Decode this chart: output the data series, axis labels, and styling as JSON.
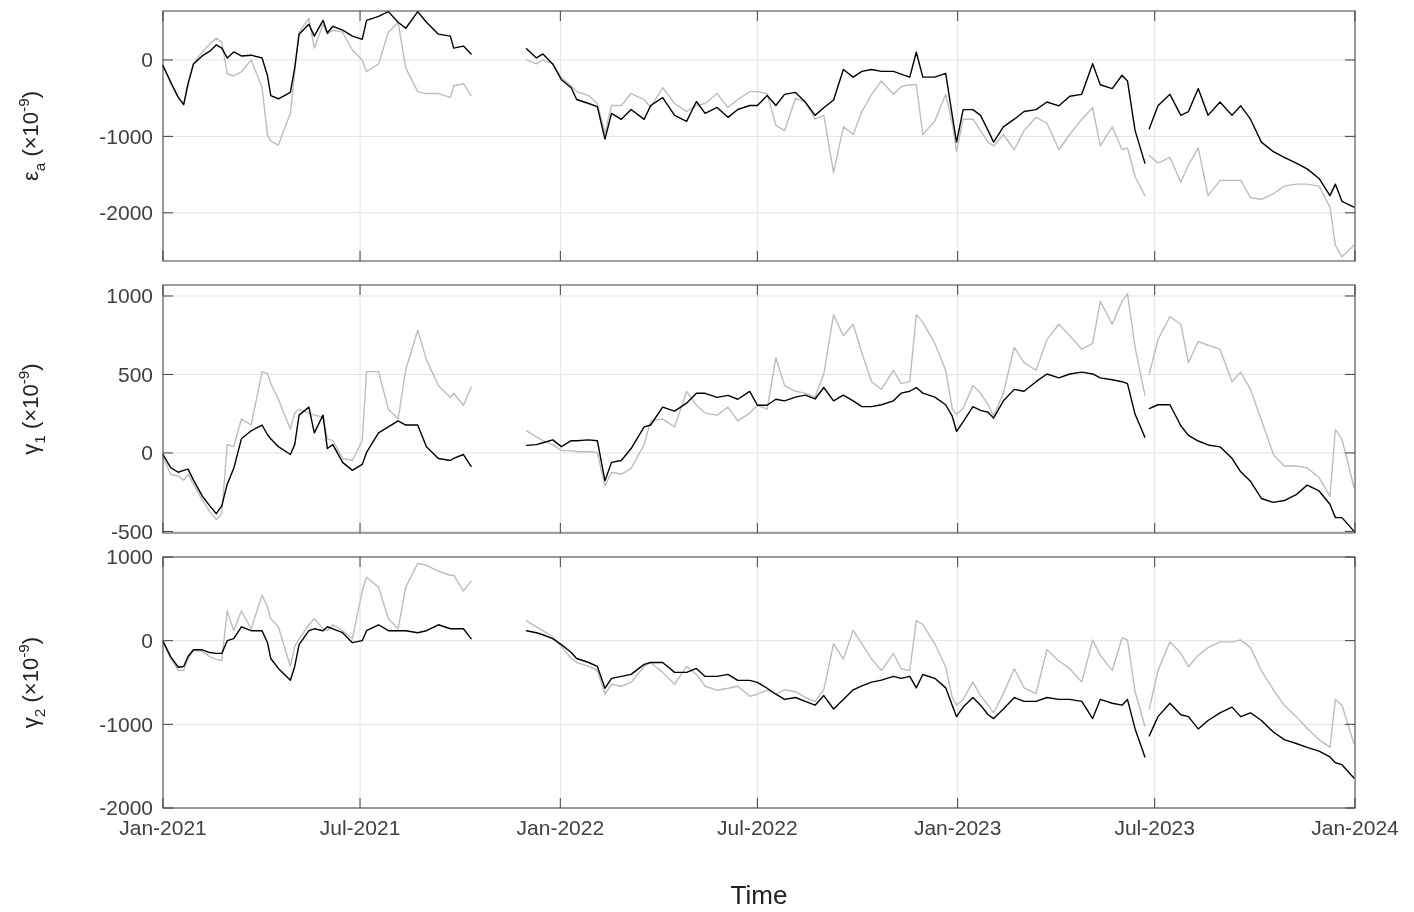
{
  "chart_data": [
    {
      "type": "line",
      "ylabel": "ε$_{a}$ (×10$^{-9}$)",
      "grid": true,
      "tick_labels": "y",
      "ylim": [
        -2630,
        640
      ],
      "yticks": [
        -2000,
        -1000,
        0
      ],
      "xlim": [
        "2021-01-01",
        "2024-01-01"
      ],
      "xticks": [
        {
          "value": "2021-01-01",
          "label": null
        },
        {
          "value": "2021-07-01",
          "label": null
        },
        {
          "value": "2022-01-01",
          "label": null
        },
        {
          "value": "2022-07-01",
          "label": null
        },
        {
          "value": "2023-01-01",
          "label": null
        },
        {
          "value": "2023-07-01",
          "label": null
        },
        {
          "value": "2024-01-01",
          "label": null
        }
      ],
      "x": [
        "2021-01-01",
        "2021-01-08",
        "2021-01-15",
        "2021-01-20",
        "2021-01-24",
        "2021-01-29",
        "2021-02-06",
        "2021-02-13",
        "2021-02-19",
        "2021-02-24",
        "2021-03-01",
        "2021-03-07",
        "2021-03-14",
        "2021-03-23",
        "2021-04-02",
        "2021-04-07",
        "2021-04-10",
        "2021-04-17",
        "2021-04-28",
        "2021-05-02",
        "2021-05-06",
        "2021-05-15",
        "2021-05-20",
        "2021-05-28",
        "2021-06-01",
        "2021-06-06",
        "2021-06-15",
        "2021-06-24",
        "2021-07-03",
        "2021-07-07",
        "2021-07-18",
        "2021-07-27",
        "2021-08-05",
        "2021-08-12",
        "2021-08-23",
        "2021-08-31",
        "2021-09-11",
        "2021-09-22",
        "2021-09-25",
        "2021-10-04",
        "2021-10-11",
        "2021-11-01",
        "2021-12-01",
        "2021-12-10",
        "2021-12-16",
        "2021-12-25",
        "2022-01-02",
        "2022-01-11",
        "2022-01-16",
        "2022-01-27",
        "2022-02-04",
        "2022-02-11",
        "2022-02-17",
        "2022-02-26",
        "2022-03-07",
        "2022-03-19",
        "2022-03-25",
        "2022-04-05",
        "2022-04-16",
        "2022-04-27",
        "2022-05-06",
        "2022-05-14",
        "2022-05-25",
        "2022-06-04",
        "2022-06-13",
        "2022-06-24",
        "2022-07-01",
        "2022-07-10",
        "2022-07-18",
        "2022-07-26",
        "2022-08-05",
        "2022-08-14",
        "2022-08-23",
        "2022-08-31",
        "2022-09-09",
        "2022-09-18",
        "2022-09-27",
        "2022-10-05",
        "2022-10-14",
        "2022-10-23",
        "2022-11-03",
        "2022-11-10",
        "2022-11-18",
        "2022-11-24",
        "2022-11-30",
        "2022-12-11",
        "2022-12-21",
        "2022-12-27",
        "2022-12-31",
        "2023-01-06",
        "2023-01-15",
        "2023-01-22",
        "2023-01-29",
        "2023-02-03",
        "2023-02-12",
        "2023-02-22",
        "2023-03-03",
        "2023-03-14",
        "2023-03-24",
        "2023-04-04",
        "2023-04-14",
        "2023-04-25",
        "2023-05-05",
        "2023-05-12",
        "2023-05-23",
        "2023-06-01",
        "2023-06-06",
        "2023-06-13",
        "2023-06-22",
        "2023-06-24",
        "2023-06-26",
        "2023-07-04",
        "2023-07-15",
        "2023-07-25",
        "2023-08-01",
        "2023-08-10",
        "2023-08-19",
        "2023-08-30",
        "2023-09-10",
        "2023-09-18",
        "2023-09-27",
        "2023-10-07",
        "2023-10-18",
        "2023-10-28",
        "2023-11-08",
        "2023-11-18",
        "2023-11-29",
        "2023-12-09",
        "2023-12-14",
        "2023-12-20",
        "2023-12-31"
      ],
      "series": [
        {
          "color": "#bdbdbd",
          "values": [
            -60,
            -311,
            -490,
            -570,
            -337,
            -52,
            104,
            207,
            285,
            233,
            -181,
            -207,
            -155,
            0,
            -363,
            -984,
            -1062,
            -1114,
            -699,
            -155,
            363,
            544,
            155,
            466,
            337,
            389,
            363,
            130,
            0,
            -155,
            -52,
            363,
            492,
            -104,
            -415,
            -440,
            -440,
            -490,
            -337,
            -311,
            -466,
            null,
            0,
            -52,
            0,
            -52,
            -233,
            -337,
            -415,
            -466,
            -570,
            -959,
            -596,
            -596,
            -440,
            -518,
            -622,
            -363,
            -570,
            -673,
            -596,
            -570,
            -440,
            -622,
            -518,
            -415,
            -415,
            -440,
            -855,
            -925,
            -500,
            -550,
            -775,
            -725,
            -1475,
            -875,
            -975,
            -675,
            -450,
            -275,
            -450,
            -350,
            -325,
            -325,
            -975,
            -800,
            -450,
            -825,
            -1200,
            -775,
            -775,
            -925,
            -1075,
            -1125,
            -975,
            -1175,
            -925,
            -750,
            -825,
            -1175,
            -975,
            -775,
            -625,
            -1125,
            -875,
            -1175,
            -1150,
            -1525,
            -1775,
            null,
            -1250,
            -1350,
            -1275,
            -1600,
            -1375,
            -1150,
            -1775,
            -1575,
            -1575,
            -1575,
            -1800,
            -1825,
            -1750,
            -1650,
            -1625,
            -1625,
            -1650,
            -1925,
            -2425,
            -2575,
            -2425
          ]
        },
        {
          "color": "#000000",
          "values": [
            -78,
            -285,
            -490,
            -585,
            -310,
            -52,
            52,
            114,
            197,
            155,
            26,
            104,
            52,
            62,
            26,
            -207,
            -466,
            -508,
            -425,
            -104,
            337,
            466,
            311,
            518,
            352,
            440,
            389,
            311,
            269,
            518,
            570,
            632,
            492,
            414,
            632,
            492,
            337,
            311,
            155,
            181,
            78,
            null,
            145,
            26,
            78,
            -52,
            -259,
            -363,
            -518,
            -570,
            -611,
            -1036,
            -699,
            -777,
            -648,
            -777,
            -596,
            -492,
            -725,
            -803,
            -544,
            -699,
            -622,
            -751,
            -648,
            -596,
            -596,
            -466,
            -596,
            -450,
            -425,
            -550,
            -725,
            -625,
            -525,
            -125,
            -225,
            -150,
            -125,
            -150,
            -150,
            -185,
            -225,
            100,
            -225,
            -225,
            -175,
            -725,
            -1075,
            -650,
            -650,
            -725,
            -925,
            -1075,
            -875,
            -775,
            -675,
            -650,
            -550,
            -600,
            -475,
            -450,
            -50,
            -325,
            -375,
            -200,
            -275,
            -925,
            -1350,
            null,
            -900,
            -600,
            -450,
            -725,
            -675,
            -375,
            -725,
            -550,
            -725,
            -600,
            -775,
            -1075,
            -1200,
            -1275,
            -1350,
            -1425,
            -1550,
            -1775,
            -1625,
            -1850,
            -1925
          ]
        }
      ]
    },
    {
      "type": "line",
      "ylabel": "γ$_{1}$ (×10$^{-9}$)",
      "grid": true,
      "tick_labels": "y",
      "ylim": [
        -510,
        1070
      ],
      "yticks": [
        -500,
        0,
        500,
        1000
      ],
      "xlim": [
        "2021-01-01",
        "2024-01-01"
      ],
      "xticks": [
        {
          "value": "2021-01-01",
          "label": null
        },
        {
          "value": "2021-07-01",
          "label": null
        },
        {
          "value": "2022-01-01",
          "label": null
        },
        {
          "value": "2022-07-01",
          "label": null
        },
        {
          "value": "2023-01-01",
          "label": null
        },
        {
          "value": "2023-07-01",
          "label": null
        },
        {
          "value": "2024-01-01",
          "label": null
        }
      ],
      "x": [
        "2021-01-01",
        "2021-01-08",
        "2021-01-15",
        "2021-01-20",
        "2021-01-24",
        "2021-01-29",
        "2021-02-06",
        "2021-02-13",
        "2021-02-19",
        "2021-02-24",
        "2021-03-01",
        "2021-03-07",
        "2021-03-14",
        "2021-03-23",
        "2021-04-02",
        "2021-04-07",
        "2021-04-10",
        "2021-04-17",
        "2021-04-28",
        "2021-05-02",
        "2021-05-06",
        "2021-05-15",
        "2021-05-20",
        "2021-05-28",
        "2021-06-01",
        "2021-06-06",
        "2021-06-15",
        "2021-06-24",
        "2021-07-03",
        "2021-07-07",
        "2021-07-18",
        "2021-07-27",
        "2021-08-05",
        "2021-08-12",
        "2021-08-23",
        "2021-08-31",
        "2021-09-11",
        "2021-09-22",
        "2021-09-25",
        "2021-10-04",
        "2021-10-11",
        "2021-11-01",
        "2021-12-01",
        "2021-12-10",
        "2021-12-16",
        "2021-12-25",
        "2022-01-02",
        "2022-01-11",
        "2022-01-16",
        "2022-01-27",
        "2022-02-04",
        "2022-02-11",
        "2022-02-17",
        "2022-02-26",
        "2022-03-07",
        "2022-03-19",
        "2022-03-25",
        "2022-04-05",
        "2022-04-16",
        "2022-04-27",
        "2022-05-06",
        "2022-05-14",
        "2022-05-25",
        "2022-06-04",
        "2022-06-13",
        "2022-06-24",
        "2022-07-01",
        "2022-07-10",
        "2022-07-18",
        "2022-07-26",
        "2022-08-05",
        "2022-08-14",
        "2022-08-23",
        "2022-08-31",
        "2022-09-09",
        "2022-09-18",
        "2022-09-27",
        "2022-10-05",
        "2022-10-14",
        "2022-10-23",
        "2022-11-03",
        "2022-11-10",
        "2022-11-18",
        "2022-11-24",
        "2022-11-30",
        "2022-12-11",
        "2022-12-21",
        "2022-12-27",
        "2022-12-31",
        "2023-01-06",
        "2023-01-15",
        "2023-01-22",
        "2023-01-29",
        "2023-02-03",
        "2023-02-12",
        "2023-02-22",
        "2023-03-03",
        "2023-03-14",
        "2023-03-24",
        "2023-04-04",
        "2023-04-14",
        "2023-04-25",
        "2023-05-05",
        "2023-05-12",
        "2023-05-23",
        "2023-06-01",
        "2023-06-06",
        "2023-06-13",
        "2023-06-22",
        "2023-06-24",
        "2023-06-26",
        "2023-07-04",
        "2023-07-15",
        "2023-07-25",
        "2023-08-01",
        "2023-08-10",
        "2023-08-19",
        "2023-08-30",
        "2023-09-10",
        "2023-09-18",
        "2023-09-27",
        "2023-10-07",
        "2023-10-18",
        "2023-10-28",
        "2023-11-08",
        "2023-11-18",
        "2023-11-29",
        "2023-12-09",
        "2023-12-14",
        "2023-12-20",
        "2023-12-31"
      ],
      "series": [
        {
          "color": "#bdbdbd",
          "values": [
            -23,
            -136,
            -148,
            -173,
            -136,
            -199,
            -299,
            -374,
            -425,
            -387,
            53,
            40,
            216,
            178,
            518,
            505,
            442,
            342,
            153,
            254,
            279,
            254,
            241,
            229,
            90,
            78,
            -35,
            -48,
            78,
            518,
            518,
            279,
            216,
            530,
            782,
            593,
            430,
            354,
            380,
            304,
            417,
            null,
            141,
            103,
            78,
            53,
            15,
            15,
            8,
            8,
            3,
            -211,
            -123,
            -136,
            -98,
            53,
            204,
            216,
            166,
            392,
            304,
            254,
            241,
            292,
            204,
            254,
            304,
            279,
            606,
            429,
            393,
            381,
            356,
            503,
            881,
            747,
            820,
            637,
            454,
            405,
            527,
            442,
            454,
            881,
            832,
            698,
            527,
            283,
            246,
            283,
            429,
            381,
            307,
            234,
            381,
            673,
            576,
            527,
            722,
            820,
            747,
            661,
            698,
            966,
            820,
            966,
            1015,
            673,
            368,
            null,
            503,
            722,
            869,
            820,
            576,
            710,
            686,
            661,
            454,
            515,
            405,
            210,
            -10,
            -83,
            -83,
            -95,
            -156,
            -278,
            149,
            88,
            -217
          ]
        },
        {
          "color": "#000000",
          "values": [
            -10,
            -93,
            -123,
            -111,
            -103,
            -173,
            -274,
            -337,
            -387,
            -337,
            -199,
            -98,
            90,
            141,
            178,
            116,
            90,
            40,
            -10,
            53,
            241,
            292,
            128,
            241,
            28,
            53,
            -60,
            -111,
            -73,
            3,
            128,
            166,
            204,
            178,
            178,
            40,
            -35,
            -48,
            -35,
            -10,
            -85,
            null,
            48,
            53,
            65,
            83,
            40,
            78,
            78,
            83,
            78,
            -178,
            -60,
            -48,
            28,
            166,
            178,
            292,
            266,
            317,
            380,
            380,
            354,
            367,
            342,
            392,
            304,
            304,
            342,
            332,
            356,
            368,
            344,
            417,
            332,
            368,
            332,
            295,
            295,
            307,
            332,
            381,
            393,
            417,
            381,
            356,
            307,
            234,
            137,
            198,
            295,
            271,
            259,
            222,
            332,
            405,
            393,
            454,
            503,
            478,
            503,
            515,
            503,
            478,
            466,
            454,
            442,
            246,
            100,
            null,
            283,
            307,
            307,
            173,
            112,
            76,
            51,
            39,
            -34,
            -120,
            -181,
            -290,
            -315,
            -303,
            -266,
            -205,
            -242,
            -327,
            -412,
            -412,
            -498
          ]
        }
      ]
    },
    {
      "type": "line",
      "ylabel": "γ$_{2}$ (×10$^{-9}$)",
      "xlabel": "Time",
      "grid": true,
      "ylim": [
        -2000,
        1000
      ],
      "yticks": [
        -2000,
        -1000,
        0,
        1000
      ],
      "xlim": [
        "2021-01-01",
        "2024-01-01"
      ],
      "xticks": [
        {
          "value": "2021-01-01",
          "label": "Jan-2021"
        },
        {
          "value": "2021-07-01",
          "label": "Jul-2021"
        },
        {
          "value": "2022-01-01",
          "label": "Jan-2022"
        },
        {
          "value": "2022-07-01",
          "label": "Jul-2022"
        },
        {
          "value": "2023-01-01",
          "label": "Jan-2023"
        },
        {
          "value": "2023-07-01",
          "label": "Jul-2023"
        },
        {
          "value": "2024-01-01",
          "label": "Jan-2024"
        }
      ],
      "x": [
        "2021-01-01",
        "2021-01-08",
        "2021-01-15",
        "2021-01-20",
        "2021-01-24",
        "2021-01-29",
        "2021-02-06",
        "2021-02-13",
        "2021-02-19",
        "2021-02-24",
        "2021-03-01",
        "2021-03-07",
        "2021-03-14",
        "2021-03-23",
        "2021-04-02",
        "2021-04-07",
        "2021-04-10",
        "2021-04-17",
        "2021-04-28",
        "2021-05-02",
        "2021-05-06",
        "2021-05-15",
        "2021-05-20",
        "2021-05-28",
        "2021-06-01",
        "2021-06-06",
        "2021-06-15",
        "2021-06-24",
        "2021-07-03",
        "2021-07-07",
        "2021-07-18",
        "2021-07-27",
        "2021-08-05",
        "2021-08-12",
        "2021-08-23",
        "2021-08-31",
        "2021-09-11",
        "2021-09-22",
        "2021-09-25",
        "2021-10-04",
        "2021-10-11",
        "2021-11-01",
        "2021-12-01",
        "2021-12-10",
        "2021-12-16",
        "2021-12-25",
        "2022-01-02",
        "2022-01-11",
        "2022-01-16",
        "2022-01-27",
        "2022-02-04",
        "2022-02-11",
        "2022-02-17",
        "2022-02-26",
        "2022-03-07",
        "2022-03-19",
        "2022-03-25",
        "2022-04-05",
        "2022-04-16",
        "2022-04-27",
        "2022-05-06",
        "2022-05-14",
        "2022-05-25",
        "2022-06-04",
        "2022-06-13",
        "2022-06-24",
        "2022-07-01",
        "2022-07-10",
        "2022-07-18",
        "2022-07-26",
        "2022-08-05",
        "2022-08-14",
        "2022-08-23",
        "2022-08-31",
        "2022-09-09",
        "2022-09-18",
        "2022-09-27",
        "2022-10-05",
        "2022-10-14",
        "2022-10-23",
        "2022-11-03",
        "2022-11-10",
        "2022-11-18",
        "2022-11-24",
        "2022-11-30",
        "2022-12-11",
        "2022-12-21",
        "2022-12-27",
        "2022-12-31",
        "2023-01-06",
        "2023-01-15",
        "2023-01-22",
        "2023-01-29",
        "2023-02-03",
        "2023-02-12",
        "2023-02-22",
        "2023-03-03",
        "2023-03-14",
        "2023-03-24",
        "2023-04-04",
        "2023-04-14",
        "2023-04-25",
        "2023-05-05",
        "2023-05-12",
        "2023-05-23",
        "2023-06-01",
        "2023-06-06",
        "2023-06-13",
        "2023-06-22",
        "2023-06-24",
        "2023-06-26",
        "2023-07-04",
        "2023-07-15",
        "2023-07-25",
        "2023-08-01",
        "2023-08-10",
        "2023-08-19",
        "2023-08-30",
        "2023-09-10",
        "2023-09-18",
        "2023-09-27",
        "2023-10-07",
        "2023-10-18",
        "2023-10-28",
        "2023-11-08",
        "2023-11-18",
        "2023-11-29",
        "2023-12-09",
        "2023-12-14",
        "2023-12-20",
        "2023-12-31"
      ],
      "series": [
        {
          "color": "#bdbdbd",
          "values": [
            -9,
            -213,
            -356,
            -356,
            -213,
            -119,
            -128,
            -190,
            -223,
            -237,
            356,
            119,
            356,
            142,
            545,
            403,
            261,
            166,
            -308,
            -71,
            24,
            190,
            261,
            142,
            119,
            190,
            119,
            24,
            593,
            758,
            640,
            261,
            142,
            640,
            924,
            901,
            830,
            782,
            782,
            593,
            711,
            null,
            237,
            166,
            119,
            47,
            -71,
            -213,
            -261,
            -308,
            -356,
            -640,
            -521,
            -545,
            -498,
            -308,
            -261,
            -379,
            -521,
            -308,
            -403,
            -545,
            -592,
            -569,
            -545,
            -664,
            -640,
            -592,
            -640,
            -587,
            -610,
            -679,
            -725,
            -587,
            -37,
            -220,
            124,
            -37,
            -220,
            -358,
            -151,
            -335,
            -358,
            239,
            193,
            -37,
            -312,
            -679,
            -771,
            -702,
            -495,
            -656,
            -771,
            -862,
            -633,
            -335,
            -564,
            -633,
            -106,
            -243,
            -335,
            -495,
            9,
            -174,
            -358,
            32,
            9,
            -610,
            -1023,
            null,
            -817,
            -358,
            -14,
            -151,
            -312,
            -174,
            -83,
            -14,
            -14,
            9,
            -83,
            -358,
            -587,
            -771,
            -908,
            -1046,
            -1183,
            -1275,
            -702,
            -771,
            -1229
          ]
        },
        {
          "color": "#000000",
          "values": [
            -9,
            -190,
            -318,
            -308,
            -190,
            -109,
            -109,
            -142,
            -152,
            -152,
            0,
            24,
            166,
            119,
            119,
            -24,
            -213,
            -332,
            -474,
            -308,
            -47,
            119,
            142,
            119,
            166,
            142,
            95,
            -24,
            0,
            119,
            190,
            119,
            119,
            119,
            95,
            119,
            190,
            142,
            142,
            142,
            24,
            null,
            119,
            95,
            71,
            24,
            -47,
            -142,
            -213,
            -261,
            -308,
            -569,
            -450,
            -427,
            -403,
            -284,
            -261,
            -261,
            -379,
            -379,
            -332,
            -427,
            -427,
            -403,
            -474,
            -474,
            -498,
            -569,
            -640,
            -702,
            -679,
            -725,
            -771,
            -656,
            -817,
            -702,
            -587,
            -541,
            -495,
            -472,
            -427,
            -450,
            -427,
            -564,
            -404,
            -450,
            -564,
            -771,
            -908,
            -794,
            -679,
            -771,
            -885,
            -931,
            -817,
            -679,
            -725,
            -725,
            -679,
            -702,
            -702,
            -725,
            -931,
            -702,
            -748,
            -771,
            -702,
            -1055,
            -1390,
            null,
            -1138,
            -908,
            -748,
            -885,
            -908,
            -1055,
            -954,
            -862,
            -794,
            -908,
            -862,
            -954,
            -1092,
            -1183,
            -1229,
            -1275,
            -1321,
            -1390,
            -1459,
            -1482,
            -1642
          ]
        }
      ]
    }
  ]
}
